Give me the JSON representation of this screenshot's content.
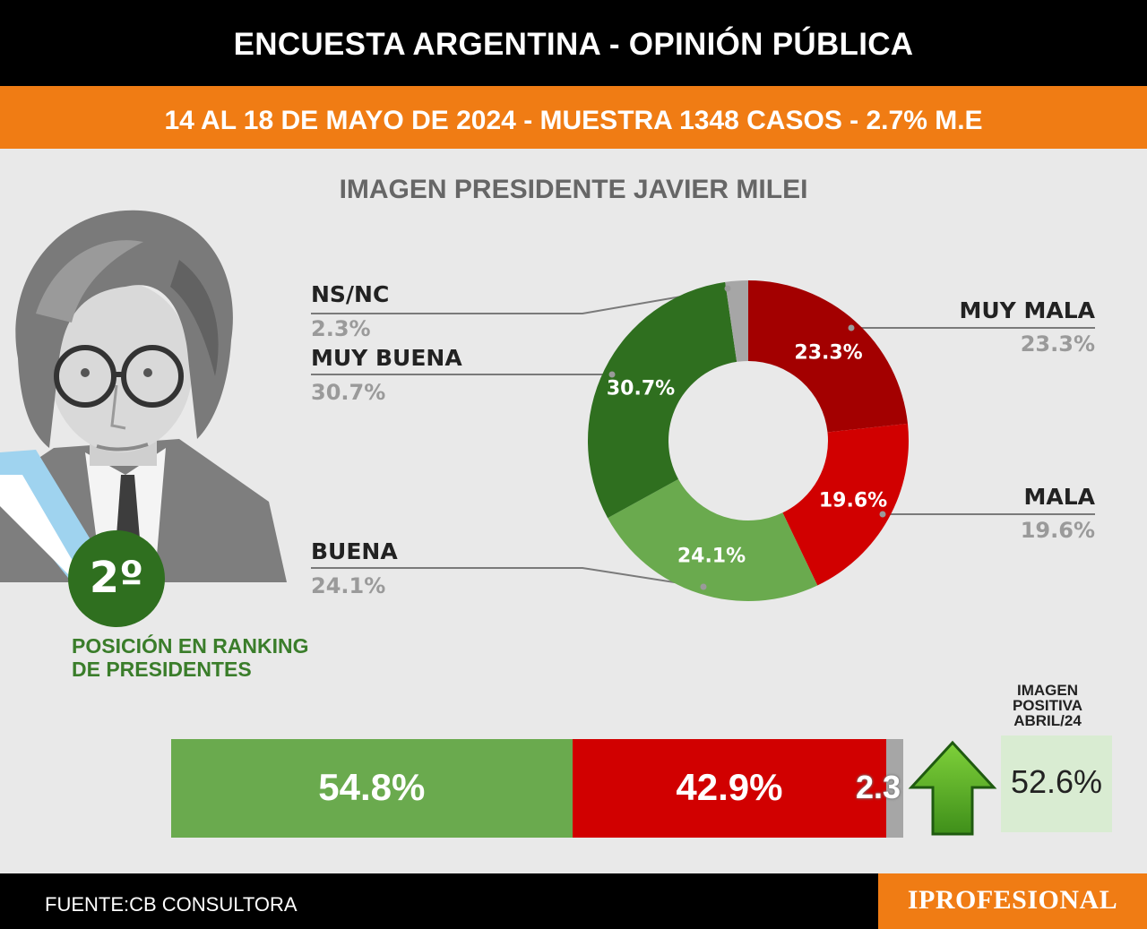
{
  "header": {
    "title": "ENCUESTA ARGENTINA - OPINIÓN PÚBLICA",
    "subtitle": "14 AL 18 DE MAYO DE 2024 - MUESTRA 1348 CASOS - 2.7% M.E"
  },
  "colors": {
    "black": "#000000",
    "orange": "#f07c14",
    "muy_mala": "#a30000",
    "mala": "#d10000",
    "buena": "#6aaa4e",
    "muy_buena": "#2f6f1f",
    "nsnc": "#a6a6a6",
    "abril_box": "#d9ecd2"
  },
  "rank": {
    "position": "2º",
    "label_line1": "POSICIÓN EN RANKING",
    "label_line2": "DE PRESIDENTES"
  },
  "chart_data": [
    {
      "type": "pie",
      "title": "IMAGEN PRESIDENTE JAVIER MILEI",
      "slices": [
        {
          "name": "MUY MALA",
          "value": 23.3,
          "label": "23.3%",
          "color": "#a30000"
        },
        {
          "name": "MALA",
          "value": 19.6,
          "label": "19.6%",
          "color": "#d10000"
        },
        {
          "name": "BUENA",
          "value": 24.1,
          "label": "24.1%",
          "color": "#6aaa4e"
        },
        {
          "name": "MUY BUENA",
          "value": 30.7,
          "label": "30.7%",
          "color": "#2f6f1f"
        },
        {
          "name": "NS/NC",
          "value": 2.3,
          "label": "2.3%",
          "color": "#a6a6a6"
        }
      ]
    },
    {
      "type": "bar",
      "stacked": true,
      "orientation": "horizontal",
      "segments": [
        {
          "value": 54.8,
          "label": "54.8%",
          "color": "#6aaa4e"
        },
        {
          "value": 42.9,
          "label": "42.9%",
          "color": "#d10000"
        },
        {
          "value": 2.3,
          "label": "2.3",
          "color": "#a6a6a6"
        }
      ]
    }
  ],
  "comparison": {
    "title_line1": "IMAGEN",
    "title_line2": "POSITIVA",
    "title_line3": "ABRIL/24",
    "value": "52.6%",
    "trend": "up-arrow-icon"
  },
  "footer": {
    "source": "FUENTE:CB CONSULTORA",
    "logo": "IPROFESIONAL"
  }
}
